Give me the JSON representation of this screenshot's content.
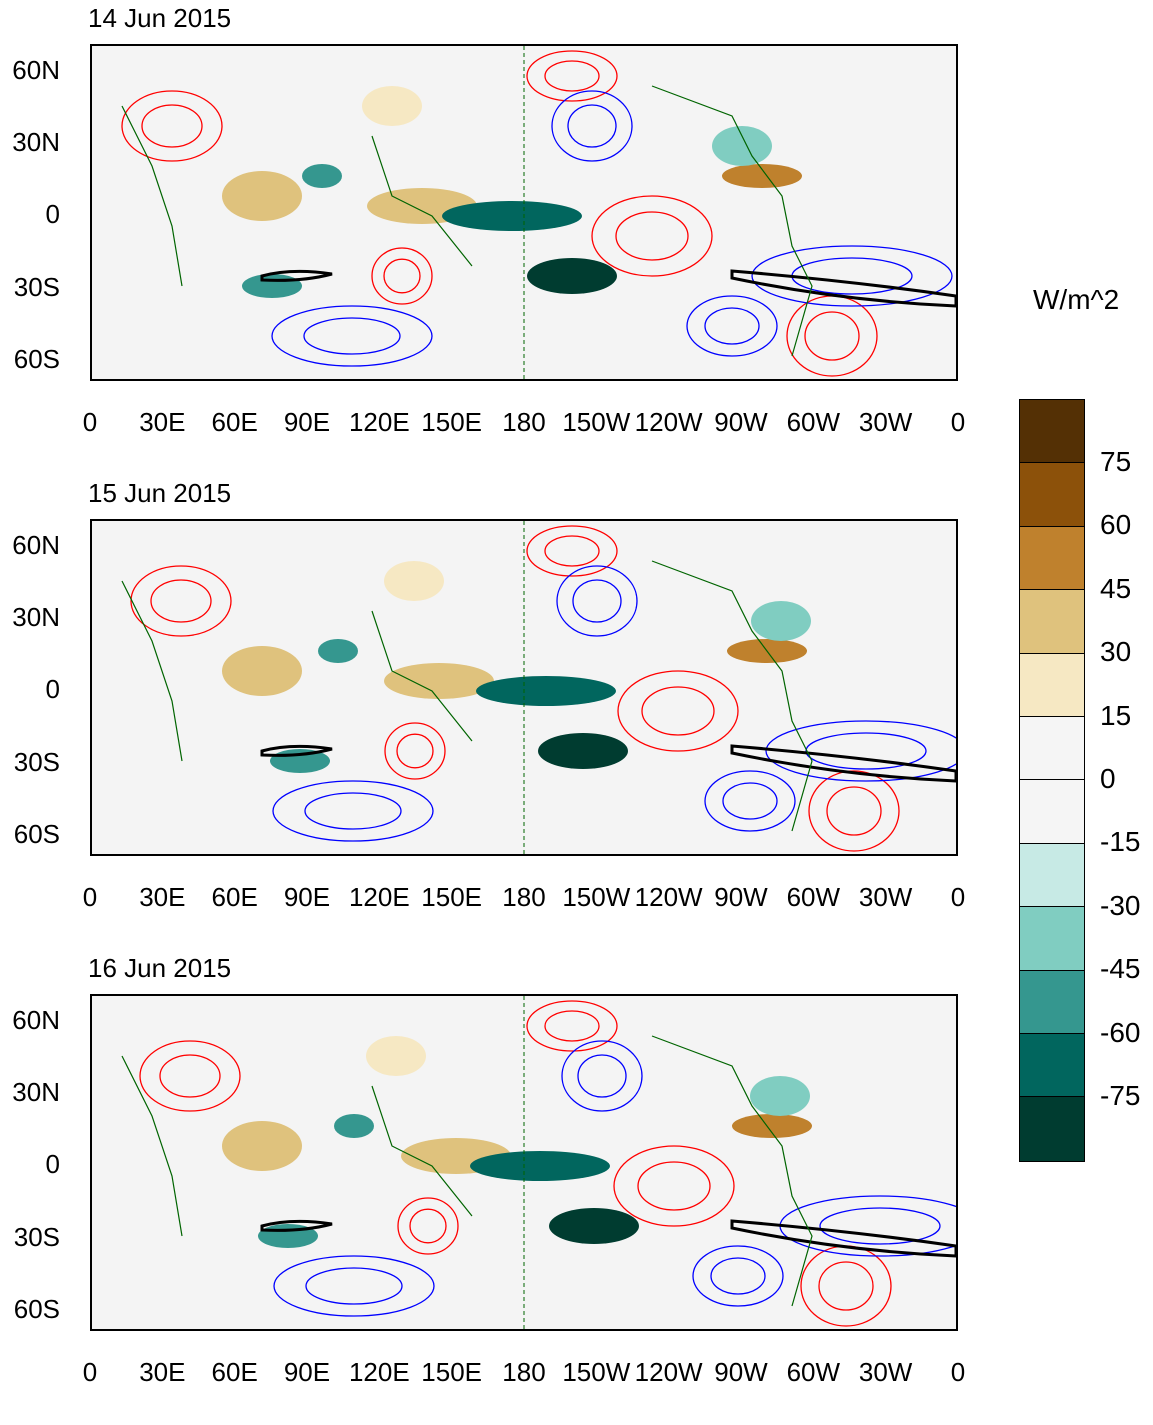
{
  "panels": [
    {
      "title": "14 Jun 2015"
    },
    {
      "title": "15 Jun 2015"
    },
    {
      "title": "16 Jun 2015"
    }
  ],
  "lat_ticks": [
    "60N",
    "30N",
    "0",
    "30S",
    "60S"
  ],
  "lon_ticks": [
    "0",
    "30E",
    "60E",
    "90E",
    "120E",
    "150E",
    "180",
    "150W",
    "120W",
    "90W",
    "60W",
    "30W",
    "0"
  ],
  "colorbar": {
    "unit": "W/m^2",
    "labels": [
      "75",
      "60",
      "45",
      "30",
      "15",
      "0",
      "-15",
      "-30",
      "-45",
      "-60",
      "-75"
    ],
    "colors": [
      "#543005",
      "#8c510a",
      "#bf812d",
      "#dfc27d",
      "#f6e8c3",
      "#f5f5f5",
      "#f5f5f5",
      "#c7eae5",
      "#80cdc1",
      "#35978f",
      "#01665e",
      "#003c30"
    ]
  },
  "contour_colors": {
    "positive": "#ff0000",
    "negative": "#0000ff",
    "jet": "#000000",
    "coast": "#006400"
  }
}
